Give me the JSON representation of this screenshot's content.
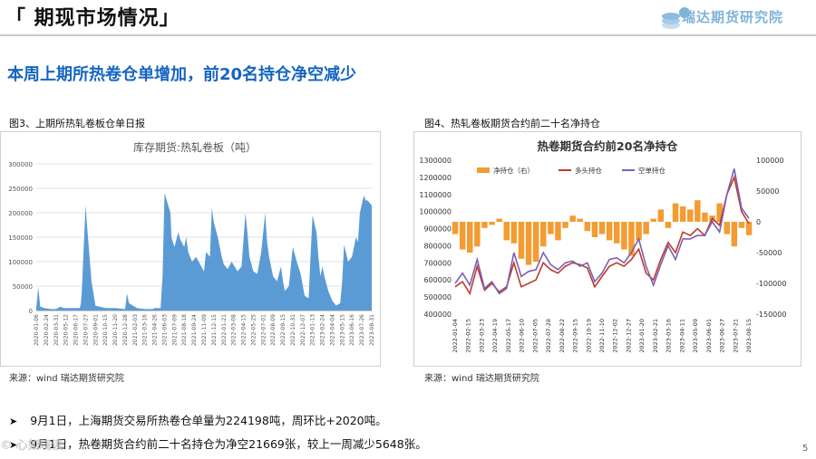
{
  "header": {
    "title": "「 期现市场情况」",
    "logo_text": "瑞达期货研究院"
  },
  "subtitle": "本周上期所热卷仓单增加，前20名持仓净空减少",
  "figure1": {
    "caption": "图3、上期所热轧卷板仓单日报",
    "source": "来源：wind   瑞达期货研究院"
  },
  "figure2": {
    "caption": "图4、热轧卷板期货合约前二十名净持仓",
    "source": "来源：wind   瑞达期货研究院"
  },
  "bullets": [
    {
      "text": "9月1日，上海期货交易所热卷仓单量为224198吨，周环比+2020吨。"
    },
    {
      "text": "9月1日，热卷期货合约前二十名持仓为净空21669张，较上一周减少5648张。"
    }
  ],
  "page_number": "5",
  "watermark": "© 心如晓读",
  "chart_data": [
    {
      "type": "area",
      "title": "库存期货:热轧卷板（吨）",
      "color": "#5b9bd5",
      "ylim": [
        0,
        300000
      ],
      "yticks": [
        "0",
        "50000",
        "100000",
        "150000",
        "200000",
        "250000",
        "300000"
      ],
      "x_labels": [
        "2020-01-06",
        "2020-02-24",
        "2020-03-31",
        "2020-05-12",
        "2020-06-17",
        "2020-07-27",
        "2020-09-01",
        "2020-10-15",
        "2020-11-20",
        "2020-12-28",
        "2021-02-03",
        "2021-03-16",
        "2021-04-26",
        "2021-06-03",
        "2021-07-09",
        "2021-08-18",
        "2021-09-24",
        "2021-11-09",
        "2021-12-15",
        "2022-01-21",
        "2022-03-08",
        "2022-04-15",
        "2022-05-25",
        "2022-07-01",
        "2022-08-09",
        "2022-09-15",
        "2022-10-31",
        "2022-12-07",
        "2023-01-13",
        "2023-02-24",
        "2023-04-04",
        "2023-05-15",
        "2023-06-16",
        "2023-07-26",
        "2023-08-31"
      ],
      "x": [
        0,
        2,
        4,
        8,
        15,
        20,
        22,
        24,
        28,
        32,
        44,
        45,
        46,
        50,
        52,
        56,
        60,
        64,
        70,
        74,
        80,
        90,
        92,
        94,
        102,
        110,
        118,
        120,
        126,
        128,
        130,
        136,
        137,
        140,
        144,
        146,
        150,
        152,
        154,
        158,
        162,
        166,
        170,
        172,
        176,
        178,
        180,
        184,
        188,
        190,
        194,
        198,
        204,
        208,
        212,
        214,
        216,
        220,
        224,
        228,
        232,
        234,
        236,
        240,
        244,
        248,
        250,
        252,
        256,
        260,
        264,
        268,
        272,
        276,
        278,
        280,
        284,
        286,
        288,
        290,
        292,
        296,
        300,
        304,
        308,
        310,
        312,
        316,
        320,
        324,
        326,
        328,
        332,
        334,
        336,
        340
      ],
      "values": [
        5000,
        48000,
        8000,
        5000,
        3000,
        3000,
        5000,
        8000,
        5000,
        5000,
        5000,
        12000,
        35000,
        215000,
        160000,
        60000,
        10000,
        8000,
        5000,
        5000,
        5000,
        3000,
        35000,
        15000,
        5000,
        3000,
        3000,
        5000,
        5000,
        70000,
        240000,
        200000,
        150000,
        130000,
        160000,
        145000,
        130000,
        150000,
        120000,
        100000,
        110000,
        95000,
        80000,
        120000,
        110000,
        210000,
        180000,
        150000,
        110000,
        95000,
        85000,
        100000,
        80000,
        90000,
        200000,
        160000,
        110000,
        80000,
        75000,
        120000,
        200000,
        140000,
        110000,
        70000,
        60000,
        90000,
        60000,
        40000,
        50000,
        130000,
        100000,
        75000,
        30000,
        25000,
        110000,
        195000,
        160000,
        110000,
        70000,
        90000,
        70000,
        40000,
        20000,
        10000,
        15000,
        60000,
        135000,
        100000,
        110000,
        150000,
        140000,
        200000,
        235000,
        225000,
        225000,
        215000
      ]
    },
    {
      "type": "bar+line",
      "title": "热卷期货合约前20名净持仓",
      "legend": [
        "净持仓（右）",
        "多头持仓",
        "空单持仓"
      ],
      "colors": {
        "net": "#f39c33",
        "long": "#c0392b",
        "short": "#7d5fb2"
      },
      "ylim_left": [
        400000,
        1300000
      ],
      "ylim_right": [
        -150000,
        100000
      ],
      "yticks_left": [
        "400000",
        "500000",
        "600000",
        "700000",
        "800000",
        "900000",
        "1000000",
        "1100000",
        "1200000",
        "1300000"
      ],
      "yticks_right": [
        "-150000",
        "-100000",
        "-50000",
        "0",
        "50000",
        "100000"
      ],
      "x_labels": [
        "2022-01-04",
        "2022-02-15",
        "2022-03-23",
        "2022-04-19",
        "2022-05-17",
        "2022-06-10",
        "2022-07-05",
        "2022-07-28",
        "2022-08-22",
        "2022-09-15",
        "2022-10-19",
        "2022-11-10",
        "2022-12-02",
        "2022-12-27",
        "2023-01-20",
        "2023-02-21",
        "2023-03-16",
        "2023-04-11",
        "2023-05-09",
        "2023-06-01",
        "2023-06-27",
        "2023-07-21",
        "2023-08-15"
      ],
      "x": [
        0,
        10,
        20,
        30,
        40,
        50,
        60,
        70,
        80,
        90,
        100,
        110,
        120,
        130,
        140,
        150,
        160,
        170,
        180,
        190,
        200,
        210,
        220,
        230,
        240,
        250,
        260,
        270,
        280,
        290,
        300,
        310,
        320,
        330,
        340,
        350,
        360,
        370,
        380,
        390,
        400
      ],
      "net": [
        -20000,
        -45000,
        -50000,
        -40000,
        -10000,
        -5000,
        5000,
        -30000,
        -35000,
        -60000,
        -70000,
        -65000,
        -40000,
        -20000,
        -30000,
        -10000,
        10000,
        5000,
        -15000,
        -25000,
        -20000,
        -30000,
        -35000,
        -45000,
        -55000,
        -30000,
        -20000,
        5000,
        20000,
        -10000,
        30000,
        25000,
        20000,
        35000,
        15000,
        10000,
        30000,
        -20000,
        -40000,
        -10000,
        -21669
      ],
      "long": [
        560000,
        590000,
        520000,
        680000,
        540000,
        580000,
        530000,
        560000,
        700000,
        560000,
        580000,
        600000,
        700000,
        660000,
        640000,
        680000,
        700000,
        690000,
        670000,
        560000,
        620000,
        680000,
        700000,
        680000,
        720000,
        780000,
        640000,
        600000,
        720000,
        820000,
        760000,
        880000,
        860000,
        900000,
        860000,
        960000,
        920000,
        1100000,
        1200000,
        1000000,
        930000
      ],
      "short": [
        580000,
        640000,
        570000,
        720000,
        550000,
        590000,
        520000,
        550000,
        760000,
        620000,
        650000,
        660000,
        760000,
        690000,
        660000,
        700000,
        710000,
        680000,
        700000,
        590000,
        640000,
        720000,
        730000,
        700000,
        760000,
        840000,
        680000,
        570000,
        690000,
        800000,
        720000,
        840000,
        840000,
        860000,
        860000,
        940000,
        880000,
        1100000,
        1250000,
        1020000,
        960000
      ]
    }
  ]
}
